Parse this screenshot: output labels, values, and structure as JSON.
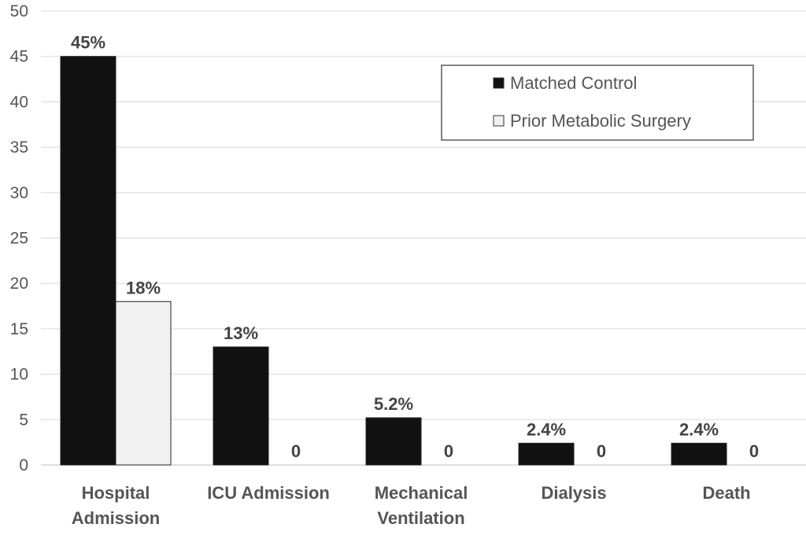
{
  "chart_data": {
    "type": "bar",
    "title": "",
    "xlabel": "",
    "ylabel": "",
    "ylim": [
      0,
      50
    ],
    "yticks": [
      0,
      5,
      10,
      15,
      20,
      25,
      30,
      35,
      40,
      45,
      50
    ],
    "grid": true,
    "legend_position": "top-right",
    "categories": [
      [
        "Hospital",
        "Admission"
      ],
      [
        "ICU Admission"
      ],
      [
        "Mechanical",
        "Ventilation"
      ],
      [
        "Dialysis"
      ],
      [
        "Death"
      ]
    ],
    "series": [
      {
        "name": "Matched Control",
        "color": "#111111",
        "values": [
          45,
          13,
          5.2,
          2.4,
          2.4
        ],
        "labels": [
          "45%",
          "13%",
          "5.2%",
          "2.4%",
          "2.4%"
        ]
      },
      {
        "name": "Prior Metabolic Surgery",
        "color": "#f2f2f2",
        "values": [
          18,
          0,
          0,
          0,
          0
        ],
        "labels": [
          "18%",
          "0",
          "0",
          "0",
          "0"
        ]
      }
    ]
  }
}
